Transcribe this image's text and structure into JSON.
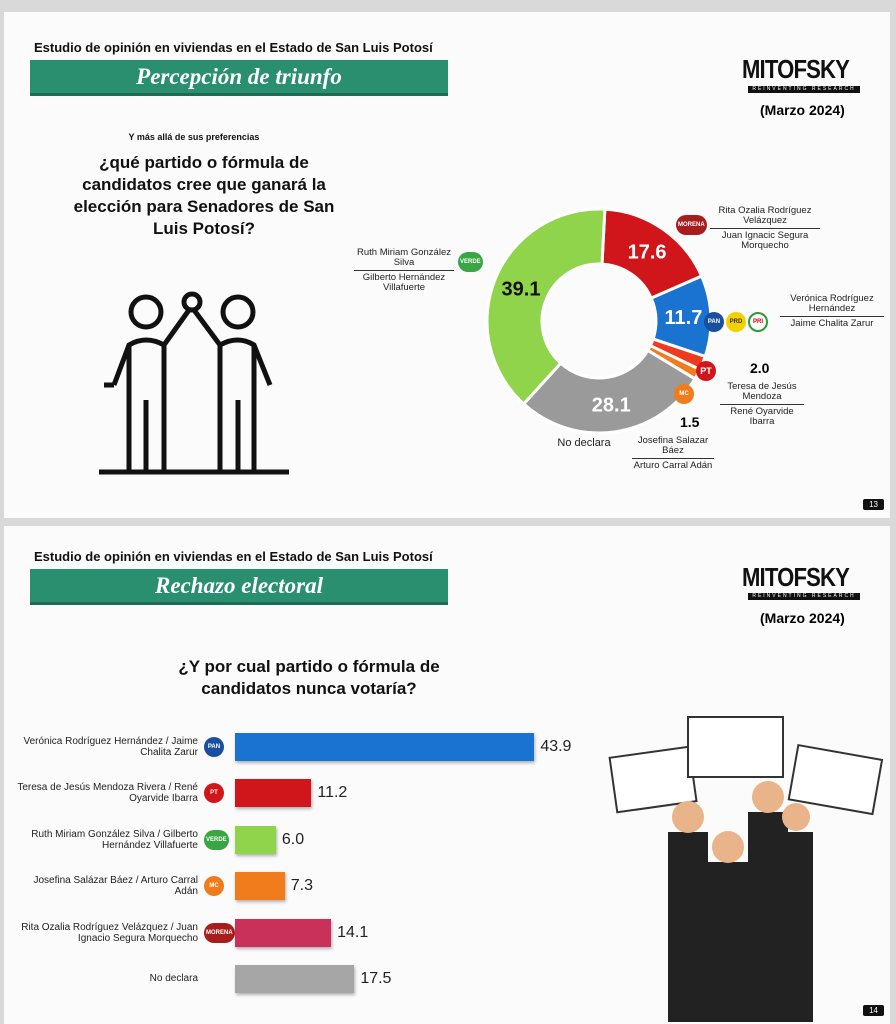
{
  "slide1": {
    "study_title": "Estudio de opinión en viviendas en el Estado de San Luis Potosí",
    "banner": "Percepción  de triunfo",
    "logo": "MITOFSKY",
    "logo_tagline": "REINVENTING RESEARCH",
    "date": "(Marzo 2024)",
    "intro": "Y más allá de sus preferencias",
    "question": "¿qué partido o fórmula de candidatos cree que ganará la elección para Senadores de San Luis Potosí?",
    "page": "13",
    "labels": {
      "morena": [
        "Rita Ozalia Rodríguez Velázquez",
        "Juan Ignacic Segura Morquecho"
      ],
      "pan": [
        "Verónica Rodríguez Hernández",
        "Jaime Chalita Zarur"
      ],
      "pt": [
        "Teresa de Jesús Mendoza",
        "René Oyarvide Ibarra"
      ],
      "mc": [
        "Josefina Salazar Báez",
        "Arturo Carral Adán"
      ],
      "verde": [
        "Ruth Miriam González Silva",
        "Gilberto Hernández Villafuerte"
      ],
      "nd": "No declara"
    }
  },
  "slide2": {
    "study_title": "Estudio de opinión en viviendas en el Estado de San Luis Potosí",
    "banner": "Rechazo electoral",
    "logo": "MITOFSKY",
    "logo_tagline": "REINVENTING RESEARCH",
    "date": "(Marzo 2024)",
    "question": "¿Y por cual partido o fórmula de candidatos nunca votaría?",
    "page": "14"
  },
  "party_badges": {
    "morena": "MORENA",
    "pt": "PT",
    "verde": "VERDE",
    "pan": "PAN",
    "mc": "MC",
    "prd": "PRD",
    "pri": "PRI"
  },
  "chart_data": [
    {
      "type": "pie",
      "subtype": "donut",
      "categories": [
        "MORENA",
        "PAN-PRI-PRD",
        "PT",
        "MC",
        "No declara",
        "Verde"
      ],
      "values": [
        17.6,
        11.7,
        2.0,
        1.5,
        28.1,
        39.1
      ],
      "colors": [
        "#d0161b",
        "#1a73d0",
        "#f03a20",
        "#f07c1c",
        "#9a9a9a",
        "#8fd44a"
      ]
    },
    {
      "type": "bar",
      "orientation": "horizontal",
      "categories": [
        "Verónica Rodríguez Hernández / Jaime Chalita Zarur",
        "Teresa de Jesús Mendoza Rivera / René Oyarvide Ibarra",
        "Ruth Miriam González Silva / Gilberto Hernández Villafuerte",
        "Josefina Salázar Báez / Arturo Carral Adán",
        "Rita Ozalia Rodríguez Velázquez / Juan Ignacio Segura Morquecho",
        "No declara"
      ],
      "values": [
        43.9,
        11.2,
        6.0,
        7.3,
        14.1,
        17.5
      ],
      "colors": [
        "#1a73d0",
        "#d0161b",
        "#8fd44a",
        "#f07c1c",
        "#c9305a",
        "#a6a6a6"
      ],
      "party": [
        "pan",
        "pt",
        "verde",
        "mc",
        "morena",
        ""
      ]
    }
  ]
}
